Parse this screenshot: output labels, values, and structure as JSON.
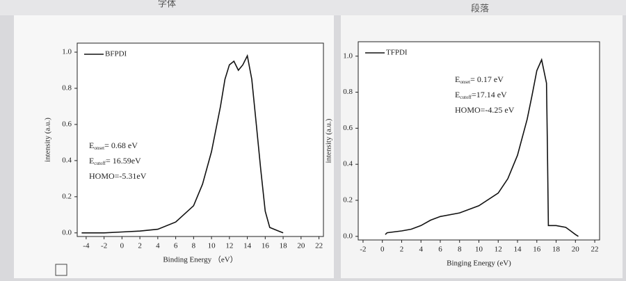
{
  "ribbon": {
    "left": "字体",
    "right": "段落"
  },
  "chart_data": [
    {
      "type": "line",
      "xlabel": "Binding Energy （eV）",
      "ylabel": "intensity (a.u.)",
      "xlim": [
        -5,
        22.5
      ],
      "ylim": [
        -0.02,
        1.05
      ],
      "xticks": [
        -4,
        -2,
        0,
        2,
        4,
        6,
        8,
        10,
        12,
        14,
        16,
        18,
        20,
        22
      ],
      "yticks": [
        {
          "value": 0,
          "label": "0.0"
        },
        0.2,
        0.4,
        0.6,
        0.8,
        {
          "value": 1,
          "label": "1.0"
        }
      ],
      "x": [
        -4.5,
        -2,
        0,
        2,
        4,
        6,
        8,
        9,
        10,
        11,
        11.5,
        12,
        12.5,
        13,
        13.5,
        14,
        14.5,
        15,
        15.5,
        16,
        16.5,
        17,
        17.5,
        18
      ],
      "series": [
        {
          "name": "BFPDI",
          "color": "#111111",
          "values": [
            0,
            0,
            0.005,
            0.01,
            0.02,
            0.06,
            0.15,
            0.27,
            0.45,
            0.7,
            0.85,
            0.93,
            0.95,
            0.9,
            0.93,
            0.98,
            0.85,
            0.6,
            0.35,
            0.12,
            0.03,
            0.02,
            0.01,
            0
          ]
        }
      ],
      "annotations": [
        {
          "symbol": "E",
          "subscript": "onset",
          "text": "= 0.68  eV"
        },
        {
          "symbol": "E",
          "subscript": "cutoff",
          "text": "= 16.59eV"
        },
        {
          "text": "HOMO=-5.31eV"
        }
      ]
    },
    {
      "type": "line",
      "xlabel": "Binging Energy (eV)",
      "ylabel": "intensity (a.u.)",
      "xlim": [
        -2.5,
        22.5
      ],
      "ylim": [
        -0.02,
        1.08
      ],
      "xticks": [
        -2,
        0,
        2,
        4,
        6,
        8,
        10,
        12,
        14,
        16,
        18,
        20,
        22
      ],
      "yticks": [
        {
          "value": 0,
          "label": "0.0"
        },
        0.2,
        0.4,
        0.6,
        0.8,
        {
          "value": 1,
          "label": "1.0"
        }
      ],
      "x": [
        0.3,
        0.5,
        2,
        3,
        4,
        5,
        6,
        8,
        10,
        12,
        13,
        14,
        15,
        15.5,
        16,
        16.5,
        17,
        17.1,
        17.2,
        18,
        19,
        19.5,
        20,
        20.3
      ],
      "series": [
        {
          "name": "TFPDI",
          "color": "#111111",
          "values": [
            0.01,
            0.02,
            0.03,
            0.04,
            0.06,
            0.09,
            0.11,
            0.13,
            0.17,
            0.24,
            0.32,
            0.45,
            0.65,
            0.78,
            0.92,
            0.98,
            0.85,
            0.5,
            0.06,
            0.06,
            0.05,
            0.03,
            0.01,
            0
          ]
        }
      ],
      "annotations": [
        {
          "symbol": "E",
          "subscript": "onset",
          "text": "= 0.17  eV"
        },
        {
          "symbol": "E",
          "subscript": "cutoff",
          "text": "=17.14 eV"
        },
        {
          "text": "HOMO=-4.25 eV"
        }
      ]
    }
  ]
}
